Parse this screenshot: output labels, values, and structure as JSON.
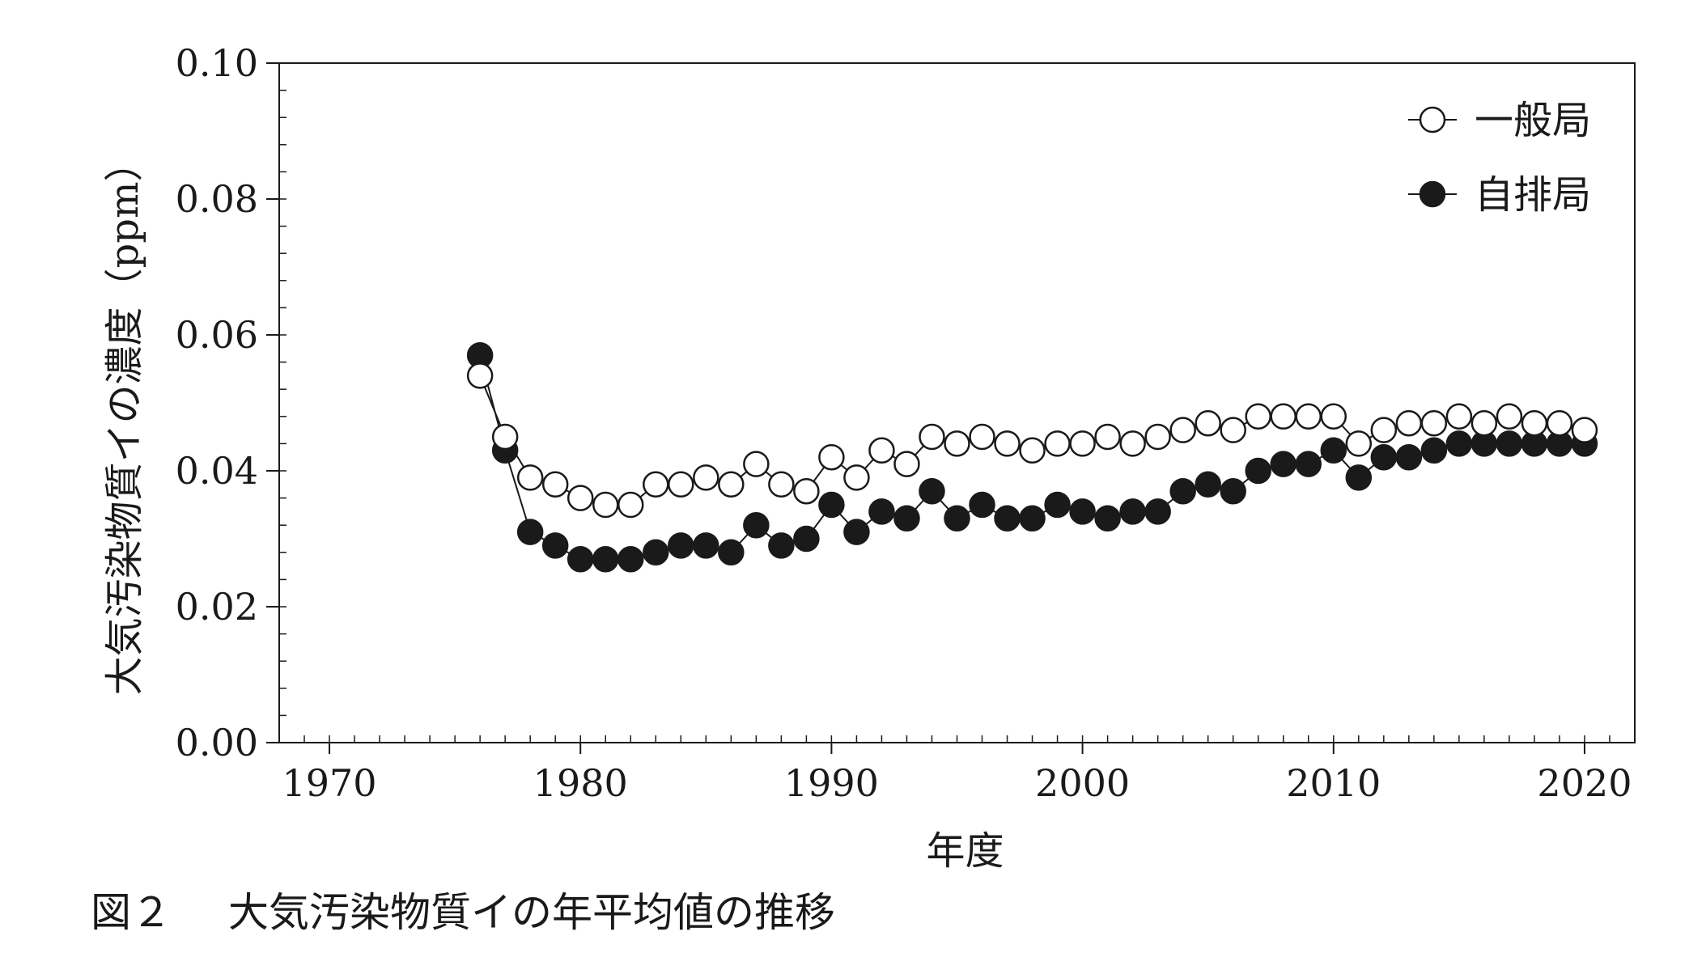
{
  "caption": {
    "figure_number": "図２",
    "text": "大気汚染物質イの年平均値の推移"
  },
  "chart_data": {
    "type": "line",
    "xlabel": "年度",
    "ylabel": "大気汚染物質イの濃度（ppm）",
    "xlim": [
      1968,
      2022
    ],
    "ylim": [
      0.0,
      0.1
    ],
    "x_ticks": [
      1970,
      1980,
      1990,
      2000,
      2010,
      2020
    ],
    "x_tick_labels": [
      "1970",
      "1980",
      "1990",
      "2000",
      "2010",
      "2020"
    ],
    "y_ticks": [
      0.0,
      0.02,
      0.04,
      0.06,
      0.08,
      0.1
    ],
    "y_tick_labels": [
      "0.00",
      "0.02",
      "0.04",
      "0.06",
      "0.08",
      "0.10"
    ],
    "grid": false,
    "legend_position": "top-right",
    "x": [
      1976,
      1977,
      1978,
      1979,
      1980,
      1981,
      1982,
      1983,
      1984,
      1985,
      1986,
      1987,
      1988,
      1989,
      1990,
      1991,
      1992,
      1993,
      1994,
      1995,
      1996,
      1997,
      1998,
      1999,
      2000,
      2001,
      2002,
      2003,
      2004,
      2005,
      2006,
      2007,
      2008,
      2009,
      2010,
      2011,
      2012,
      2013,
      2014,
      2015,
      2016,
      2017,
      2018,
      2019,
      2020
    ],
    "series": [
      {
        "name": "一般局",
        "marker": "open-circle",
        "color": "#1a1a1a",
        "values": [
          0.054,
          0.045,
          0.039,
          0.038,
          0.036,
          0.035,
          0.035,
          0.038,
          0.038,
          0.039,
          0.038,
          0.041,
          0.038,
          0.037,
          0.042,
          0.039,
          0.043,
          0.041,
          0.045,
          0.044,
          0.045,
          0.044,
          0.043,
          0.044,
          0.044,
          0.045,
          0.044,
          0.045,
          0.046,
          0.047,
          0.046,
          0.048,
          0.048,
          0.048,
          0.048,
          0.044,
          0.046,
          0.047,
          0.047,
          0.048,
          0.047,
          0.048,
          0.047,
          0.047,
          0.046
        ]
      },
      {
        "name": "自排局",
        "marker": "filled-circle",
        "color": "#1a1a1a",
        "values": [
          0.057,
          0.043,
          0.031,
          0.029,
          0.027,
          0.027,
          0.027,
          0.028,
          0.029,
          0.029,
          0.028,
          0.032,
          0.029,
          0.03,
          0.035,
          0.031,
          0.034,
          0.033,
          0.037,
          0.033,
          0.035,
          0.033,
          0.033,
          0.035,
          0.034,
          0.033,
          0.034,
          0.034,
          0.037,
          0.038,
          0.037,
          0.04,
          0.041,
          0.041,
          0.043,
          0.039,
          0.042,
          0.042,
          0.043,
          0.044,
          0.044,
          0.044,
          0.044,
          0.044,
          0.044
        ]
      }
    ]
  }
}
